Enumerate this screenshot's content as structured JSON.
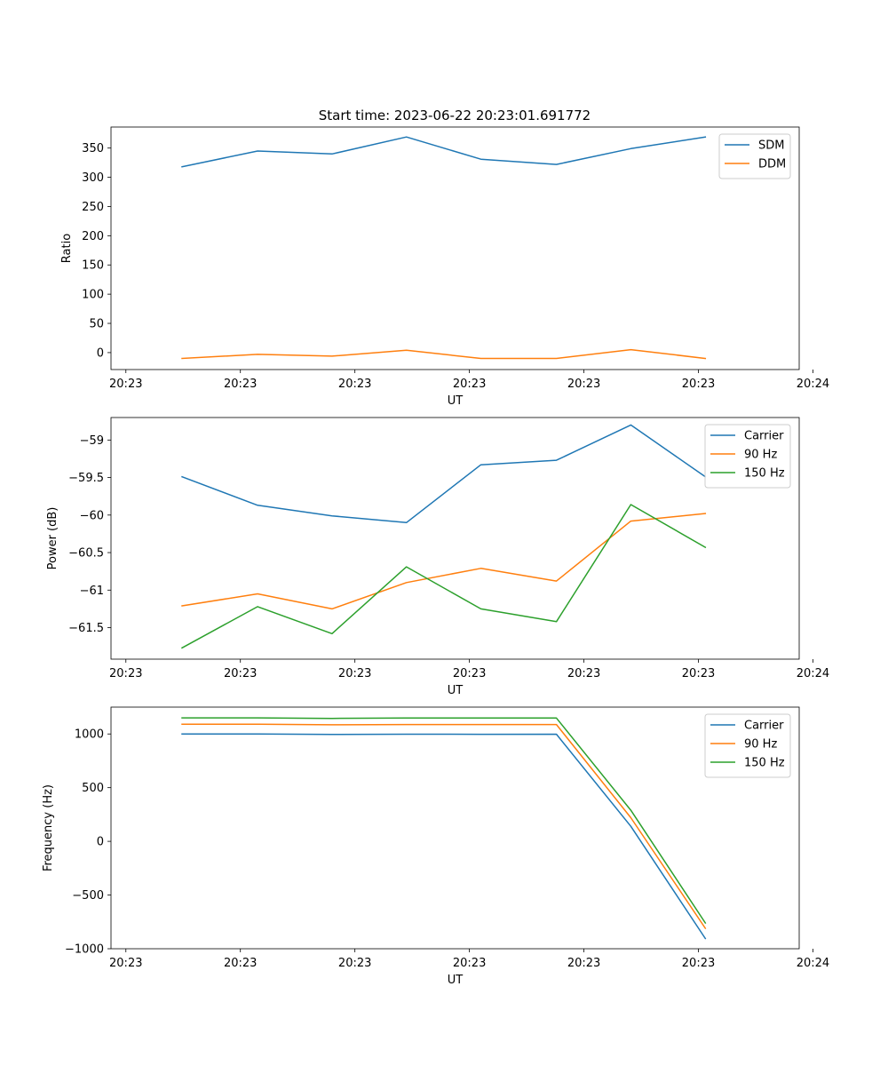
{
  "figure": {
    "title": "Start time: 2023-06-22 20:23:01.691772"
  },
  "chart_data": [
    {
      "type": "line",
      "xlabel": "UT",
      "ylabel": "Ratio",
      "xticks": [
        "20:23",
        "20:23",
        "20:23",
        "20:23",
        "20:23",
        "20:23",
        "20:24"
      ],
      "yticks": [
        0,
        50,
        100,
        150,
        200,
        250,
        300,
        350
      ],
      "ylim": [
        -29,
        386
      ],
      "xlim": [
        -0.13,
        5.88
      ],
      "legend": "top-right",
      "grid": false,
      "series": [
        {
          "name": "SDM",
          "color": "#1f77b4",
          "x": [
            0.49,
            1.15,
            1.8,
            2.45,
            3.1,
            3.76,
            4.41,
            5.06
          ],
          "y": [
            318,
            345,
            340,
            369,
            331,
            322,
            349,
            369
          ]
        },
        {
          "name": "DDM",
          "color": "#ff7f0e",
          "x": [
            0.49,
            1.15,
            1.8,
            2.45,
            3.1,
            3.76,
            4.41,
            5.06
          ],
          "y": [
            -10,
            -3,
            -6,
            4,
            -10,
            -10,
            5,
            -10
          ]
        }
      ]
    },
    {
      "type": "line",
      "xlabel": "UT",
      "ylabel": "Power (dB)",
      "xticks": [
        "20:23",
        "20:23",
        "20:23",
        "20:23",
        "20:23",
        "20:23",
        "20:24"
      ],
      "yticks": [
        -59.0,
        -59.5,
        -60.0,
        -60.5,
        -61.0,
        -61.5
      ],
      "ylim": [
        -61.92,
        -58.7
      ],
      "xlim": [
        -0.13,
        5.88
      ],
      "legend": "top-right",
      "grid": false,
      "series": [
        {
          "name": "Carrier",
          "color": "#1f77b4",
          "x": [
            0.49,
            1.15,
            1.8,
            2.45,
            3.1,
            3.76,
            4.41,
            5.06
          ],
          "y": [
            -59.49,
            -59.87,
            -60.01,
            -60.1,
            -59.33,
            -59.27,
            -58.8,
            -59.49
          ]
        },
        {
          "name": "90 Hz",
          "color": "#ff7f0e",
          "x": [
            0.49,
            1.15,
            1.8,
            2.45,
            3.1,
            3.76,
            4.41,
            5.06
          ],
          "y": [
            -61.21,
            -61.05,
            -61.25,
            -60.9,
            -60.71,
            -60.88,
            -60.08,
            -59.98
          ]
        },
        {
          "name": "150 Hz",
          "color": "#2ca02c",
          "x": [
            0.49,
            1.15,
            1.8,
            2.45,
            3.1,
            3.76,
            4.41,
            5.06
          ],
          "y": [
            -61.77,
            -61.22,
            -61.58,
            -60.69,
            -61.25,
            -61.42,
            -59.86,
            -60.43
          ]
        }
      ]
    },
    {
      "type": "line",
      "xlabel": "UT",
      "ylabel": "Frequency (Hz)",
      "xticks": [
        "20:23",
        "20:23",
        "20:23",
        "20:23",
        "20:23",
        "20:23",
        "20:24"
      ],
      "yticks": [
        1000,
        500,
        0,
        -500,
        -1000
      ],
      "ylim": [
        -1000,
        1250
      ],
      "xlim": [
        -0.13,
        5.88
      ],
      "legend": "top-right",
      "grid": false,
      "series": [
        {
          "name": "Carrier",
          "color": "#1f77b4",
          "x": [
            0.49,
            1.15,
            1.8,
            2.45,
            3.1,
            3.76,
            4.41,
            5.06
          ],
          "y": [
            1000,
            1000,
            995,
            998,
            997,
            998,
            140,
            -905
          ]
        },
        {
          "name": "90 Hz",
          "color": "#ff7f0e",
          "x": [
            0.49,
            1.15,
            1.8,
            2.45,
            3.1,
            3.76,
            4.41,
            5.06
          ],
          "y": [
            1090,
            1090,
            1085,
            1088,
            1088,
            1088,
            220,
            -810
          ]
        },
        {
          "name": "150 Hz",
          "color": "#2ca02c",
          "x": [
            0.49,
            1.15,
            1.8,
            2.45,
            3.1,
            3.76,
            4.41,
            5.06
          ],
          "y": [
            1150,
            1150,
            1145,
            1148,
            1148,
            1148,
            290,
            -760
          ]
        }
      ]
    }
  ]
}
